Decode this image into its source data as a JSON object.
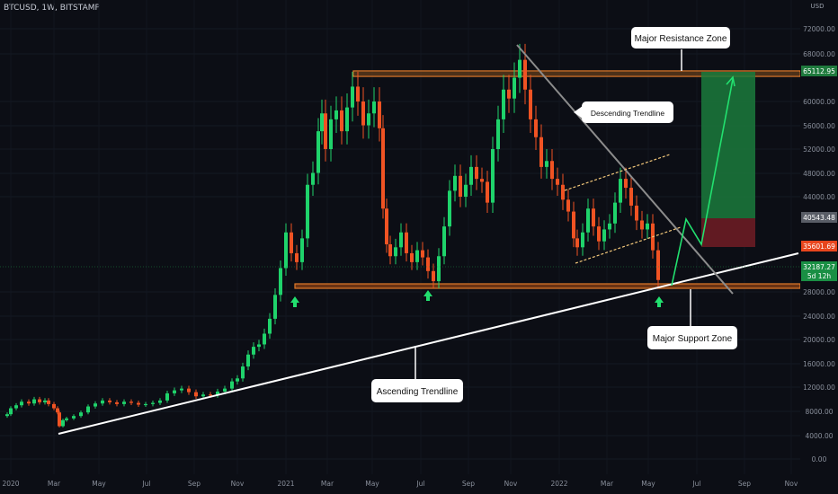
{
  "symbol": "BTCUSD, 1W, BITSTAMP",
  "price_axis": {
    "top_label": "USD",
    "ticks": [
      "72000.00",
      "68000.00",
      "60000.00",
      "56000.00",
      "52000.00",
      "48000.00",
      "44000.00",
      "28000.00",
      "24000.00",
      "20000.00",
      "16000.00",
      "12000.00",
      "8000.00",
      "4000.00",
      "0.00"
    ],
    "tags": {
      "resistance": "65112.95",
      "last_gray": "40543.48",
      "red": "35601.69",
      "current": "32187.27",
      "countdown": "5d 12h"
    }
  },
  "time_axis": {
    "labels": [
      "2020",
      "Mar",
      "May",
      "Jul",
      "Sep",
      "Nov",
      "2021",
      "Mar",
      "May",
      "Jul",
      "Sep",
      "Nov",
      "2022",
      "Mar",
      "May",
      "Jul",
      "Sep",
      "Nov"
    ]
  },
  "annotations": {
    "resistance_zone": "Major Resistance Zone",
    "support_zone": "Major Support Zone",
    "descending": "Descending Trendline",
    "ascending": "Ascending Trendline"
  },
  "colors": {
    "background": "#0c0e15",
    "bull": "#1fd36b",
    "bear": "#f05323",
    "zone": "#e07a2a",
    "trendline_asc": "#ffffff",
    "trendline_desc": "#8a8a8a",
    "channel": "#f2c77a",
    "target_arrow": "#22e06f"
  },
  "chart_data": {
    "type": "candlestick",
    "weekly_close_approx": [
      {
        "x": "2020-01",
        "y": 7200
      },
      {
        "x": "2020-02",
        "y": 9800
      },
      {
        "x": "2020-03",
        "y": 5800
      },
      {
        "x": "2020-05",
        "y": 9500
      },
      {
        "x": "2020-07",
        "y": 9200
      },
      {
        "x": "2020-09",
        "y": 10500
      },
      {
        "x": "2020-11",
        "y": 15500
      },
      {
        "x": "2021-01",
        "y": 33000
      },
      {
        "x": "2021-03",
        "y": 58000
      },
      {
        "x": "2021-04",
        "y": 63000
      },
      {
        "x": "2021-06",
        "y": 35000
      },
      {
        "x": "2021-07",
        "y": 30000
      },
      {
        "x": "2021-09",
        "y": 47000
      },
      {
        "x": "2021-11",
        "y": 68000
      },
      {
        "x": "2022-01",
        "y": 38000
      },
      {
        "x": "2022-03",
        "y": 46000
      },
      {
        "x": "2022-05",
        "y": 29000
      }
    ],
    "levels": {
      "resistance_zone": [
        64000,
        65112.95
      ],
      "support_zone": [
        28500,
        29500
      ],
      "current_price": 32187.27
    }
  }
}
